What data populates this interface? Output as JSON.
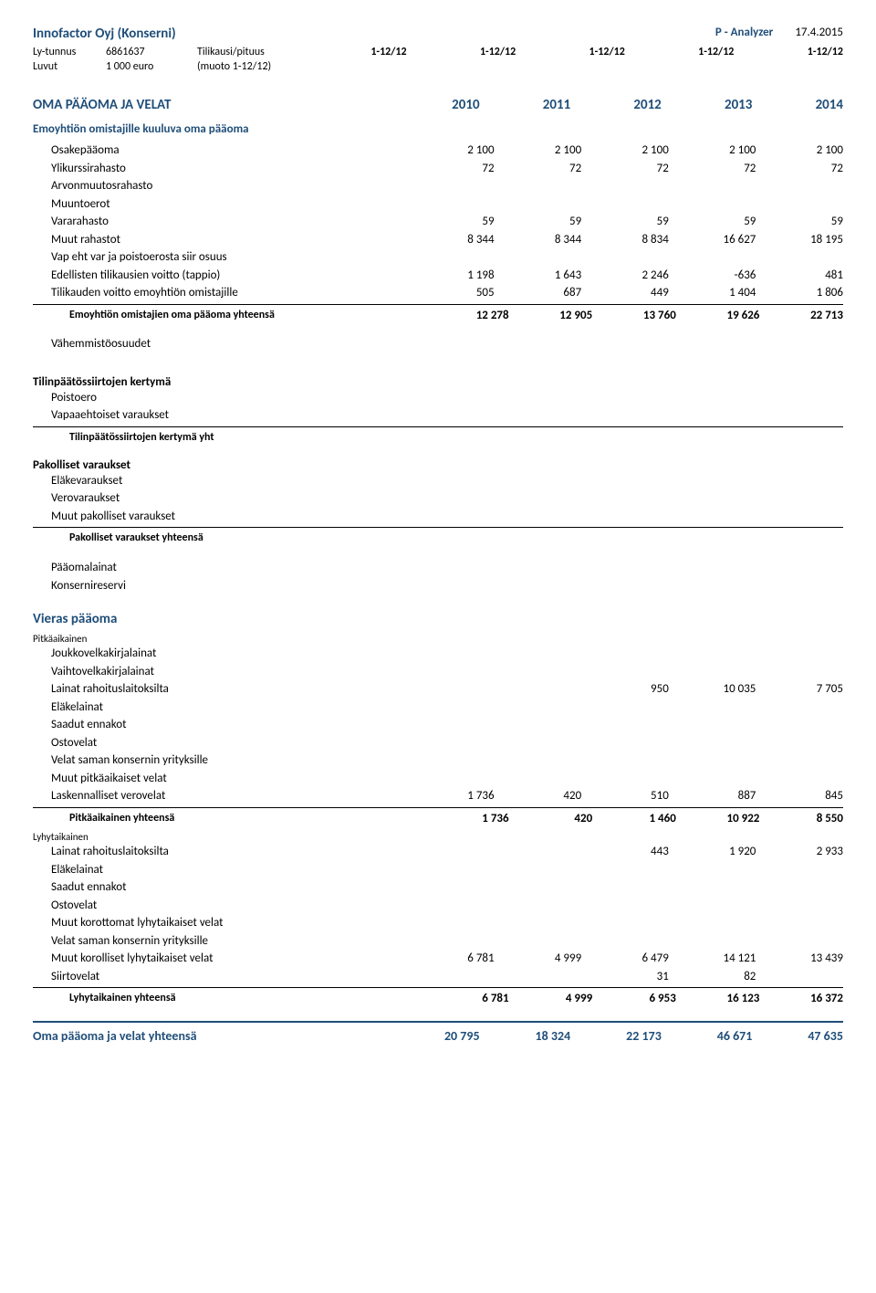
{
  "header": {
    "company": "Innofactor Oyj (Konserni)",
    "analyzer_label": "P - Analyzer",
    "date": "17.4.2015",
    "ly_label": "Ly-tunnus",
    "ly_value": "6861637",
    "tilikausi_label": "Tilikausi/pituus",
    "periods": [
      "1-12/12",
      "1-12/12",
      "1-12/12",
      "1-12/12",
      "1-12/12"
    ],
    "luvut_label": "Luvut",
    "luvut_value": "1 000 euro",
    "muoto": "(muoto 1-12/12)"
  },
  "section": {
    "title": "OMA PÄÄOMA JA VELAT",
    "years": [
      "2010",
      "2011",
      "2012",
      "2013",
      "2014"
    ]
  },
  "emo": {
    "title": "Emoyhtiön omistajille kuuluva oma pääoma",
    "rows": [
      {
        "label": "Osakepääoma",
        "v": [
          "2 100",
          "2 100",
          "2 100",
          "2 100",
          "2 100"
        ]
      },
      {
        "label": "Ylikurssirahasto",
        "v": [
          "72",
          "72",
          "72",
          "72",
          "72"
        ]
      },
      {
        "label": "Arvonmuutosrahasto",
        "v": [
          "",
          "",
          "",
          "",
          ""
        ]
      },
      {
        "label": "Muuntoerot",
        "v": [
          "",
          "",
          "",
          "",
          ""
        ]
      },
      {
        "label": "Vararahasto",
        "v": [
          "59",
          "59",
          "59",
          "59",
          "59"
        ]
      },
      {
        "label": "Muut rahastot",
        "v": [
          "8 344",
          "8 344",
          "8 834",
          "16 627",
          "18 195"
        ]
      },
      {
        "label": "Vap eht var ja poistoerosta siir osuus",
        "v": [
          "",
          "",
          "",
          "",
          ""
        ]
      },
      {
        "label": "Edellisten tilikausien voitto (tappio)",
        "v": [
          "1 198",
          "1 643",
          "2 246",
          "-636",
          "481"
        ]
      },
      {
        "label": "Tilikauden voitto emoyhtiön omistajille",
        "v": [
          "505",
          "687",
          "449",
          "1 404",
          "1 806"
        ]
      }
    ],
    "total": {
      "label": "Emoyhtiön omistajien oma pääoma yhteensä",
      "v": [
        "12 278",
        "12 905",
        "13 760",
        "19 626",
        "22 713"
      ]
    },
    "vah": "Vähemmistöosuudet"
  },
  "tps": {
    "title": "Tilinpäätössiirtojen kertymä",
    "rows": [
      {
        "label": "Poistoero"
      },
      {
        "label": "Vapaaehtoiset varaukset"
      }
    ],
    "total_label": "Tilinpäätössiirtojen kertymä yht"
  },
  "pakolliset": {
    "title": "Pakolliset varaukset",
    "rows": [
      {
        "label": "Eläkevaraukset"
      },
      {
        "label": "Verovaraukset"
      },
      {
        "label": "Muut pakolliset varaukset"
      }
    ],
    "total_label": "Pakolliset varaukset yhteensä"
  },
  "paaomalainat": "Pääomalainat",
  "konsernireservi": "Konsernireservi",
  "vieras": {
    "title": "Vieras pääoma",
    "pitka_label": "Pitkäaikainen",
    "pitka_rows": [
      {
        "label": "Joukkovelkakirjalainat",
        "v": [
          "",
          "",
          "",
          "",
          ""
        ]
      },
      {
        "label": "Vaihtovelkakirjalainat",
        "v": [
          "",
          "",
          "",
          "",
          ""
        ]
      },
      {
        "label": "Lainat rahoituslaitoksilta",
        "v": [
          "",
          "",
          "950",
          "10 035",
          "7 705"
        ]
      },
      {
        "label": "Eläkelainat",
        "v": [
          "",
          "",
          "",
          "",
          ""
        ]
      },
      {
        "label": "Saadut ennakot",
        "v": [
          "",
          "",
          "",
          "",
          ""
        ]
      },
      {
        "label": "Ostovelat",
        "v": [
          "",
          "",
          "",
          "",
          ""
        ]
      },
      {
        "label": "Velat saman konsernin yrityksille",
        "v": [
          "",
          "",
          "",
          "",
          ""
        ]
      },
      {
        "label": "Muut pitkäaikaiset velat",
        "v": [
          "",
          "",
          "",
          "",
          ""
        ]
      },
      {
        "label": "Laskennalliset verovelat",
        "v": [
          "1 736",
          "420",
          "510",
          "887",
          "845"
        ]
      }
    ],
    "pitka_total": {
      "label": "Pitkäaikainen yhteensä",
      "v": [
        "1 736",
        "420",
        "1 460",
        "10 922",
        "8 550"
      ]
    },
    "lyhyt_label": "Lyhytaikainen",
    "lyhyt_rows": [
      {
        "label": "Lainat rahoituslaitoksilta",
        "v": [
          "",
          "",
          "443",
          "1 920",
          "2 933"
        ]
      },
      {
        "label": "Eläkelainat",
        "v": [
          "",
          "",
          "",
          "",
          ""
        ]
      },
      {
        "label": "Saadut ennakot",
        "v": [
          "",
          "",
          "",
          "",
          ""
        ]
      },
      {
        "label": "Ostovelat",
        "v": [
          "",
          "",
          "",
          "",
          ""
        ]
      },
      {
        "label": "Muut korottomat lyhytaikaiset velat",
        "v": [
          "",
          "",
          "",
          "",
          ""
        ]
      },
      {
        "label": "Velat saman konsernin yrityksille",
        "v": [
          "",
          "",
          "",
          "",
          ""
        ]
      },
      {
        "label": "Muut korolliset lyhytaikaiset velat",
        "v": [
          "6 781",
          "4 999",
          "6 479",
          "14 121",
          "13 439"
        ]
      },
      {
        "label": "Siirtovelat",
        "v": [
          "",
          "",
          "31",
          "82",
          ""
        ]
      }
    ],
    "lyhyt_total": {
      "label": "Lyhytaikainen yhteensä",
      "v": [
        "6 781",
        "4 999",
        "6 953",
        "16 123",
        "16 372"
      ]
    }
  },
  "final": {
    "label": "Oma pääoma ja velat yhteensä",
    "v": [
      "20 795",
      "18 324",
      "22 173",
      "46 671",
      "47 635"
    ]
  }
}
